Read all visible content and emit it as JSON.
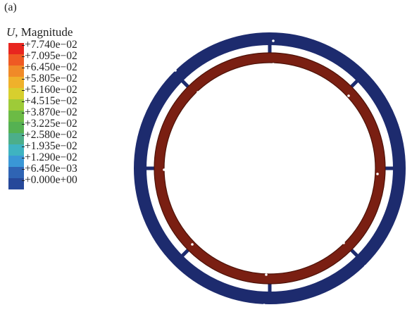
{
  "panel_label": "(a)",
  "legend": {
    "variable": "U",
    "title_rest": ", Magnitude",
    "entries": [
      {
        "label": "+7.740e−02",
        "color": "#e8261f"
      },
      {
        "label": "+7.095e−02",
        "color": "#ef5a23"
      },
      {
        "label": "+6.450e−02",
        "color": "#f08a28"
      },
      {
        "label": "+5.805e−02",
        "color": "#efb12b"
      },
      {
        "label": "+5.160e−02",
        "color": "#d7cf2e"
      },
      {
        "label": "+4.515e−02",
        "color": "#9ecb38"
      },
      {
        "label": "+3.870e−02",
        "color": "#6cbb45"
      },
      {
        "label": "+3.225e−02",
        "color": "#55b152"
      },
      {
        "label": "+2.580e−02",
        "color": "#4cae8a"
      },
      {
        "label": "+1.935e−02",
        "color": "#3fb3c1"
      },
      {
        "label": "+1.290e−02",
        "color": "#3a97d6"
      },
      {
        "label": "+6.450e−03",
        "color": "#2f64b4"
      },
      {
        "label": "+0.000e+00",
        "color": "#26489a"
      }
    ]
  },
  "colors": {
    "outer_ring": "#1d2b6e",
    "inner_ring": "#7a1f12",
    "inner_ring_dark": "#4d1208"
  }
}
